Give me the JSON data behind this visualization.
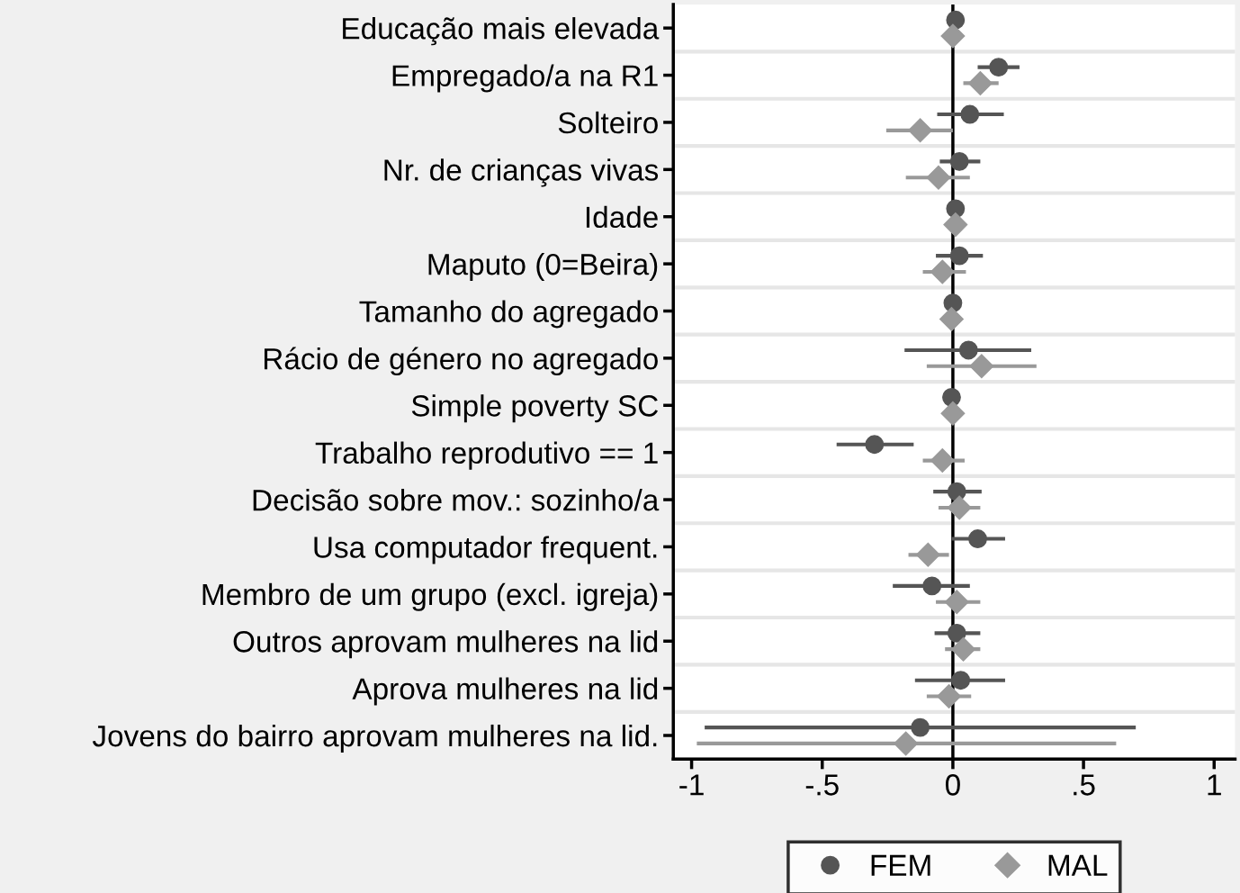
{
  "chart_data": {
    "type": "scatter",
    "orientation": "horizontal",
    "categories": [
      "Educação mais elevada",
      "Empregado/a na R1",
      "Solteiro",
      "Nr. de crianças vivas",
      "Idade",
      "Maputo (0=Beira)",
      "Tamanho do agregado",
      "Rácio de género no agregado",
      "Simple poverty SC",
      "Trabalho reprodutivo == 1",
      "Decisão sobre mov.: sozinho/a",
      "Usa computador frequent.",
      "Membro de um grupo (excl. igreja)",
      "Outros aprovam mulheres na lid",
      "Aprova mulheres na lid",
      "Jovens do bairro aprovam mulheres na lid."
    ],
    "series": [
      {
        "name": "FEM",
        "color": "#555555",
        "marker": "circle",
        "values": [
          0.01,
          0.175,
          0.065,
          0.025,
          0.01,
          0.025,
          0.0,
          0.06,
          -0.005,
          -0.3,
          0.015,
          0.095,
          -0.08,
          0.015,
          0.03,
          -0.125
        ],
        "errors": [
          null,
          [
            0.095,
            0.255
          ],
          [
            -0.06,
            0.195
          ],
          [
            -0.05,
            0.105
          ],
          null,
          [
            -0.065,
            0.115
          ],
          null,
          [
            -0.185,
            0.3
          ],
          null,
          [
            -0.445,
            -0.15
          ],
          [
            -0.075,
            0.11
          ],
          [
            -0.005,
            0.2
          ],
          [
            -0.23,
            0.065
          ],
          [
            -0.07,
            0.105
          ],
          [
            -0.145,
            0.2
          ],
          [
            -0.95,
            0.7
          ]
        ]
      },
      {
        "name": "MAL",
        "color": "#999999",
        "marker": "diamond",
        "values": [
          0.0,
          0.105,
          -0.125,
          -0.055,
          0.01,
          -0.04,
          -0.005,
          0.11,
          0.0,
          -0.04,
          0.025,
          -0.095,
          0.015,
          0.04,
          -0.015,
          -0.18
        ],
        "errors": [
          null,
          [
            0.04,
            0.175
          ],
          [
            -0.255,
            0.0
          ],
          [
            -0.18,
            0.065
          ],
          null,
          [
            -0.115,
            0.05
          ],
          null,
          [
            -0.1,
            0.32
          ],
          null,
          [
            -0.115,
            0.045
          ],
          [
            -0.055,
            0.105
          ],
          [
            -0.17,
            -0.015
          ],
          [
            -0.065,
            0.105
          ],
          [
            -0.03,
            0.105
          ],
          [
            -0.1,
            0.07
          ],
          [
            -0.98,
            0.625
          ]
        ]
      }
    ],
    "xlim": [
      -1.07,
      1.08
    ],
    "xticks": [
      {
        "value": -1,
        "label": "-1"
      },
      {
        "value": -0.5,
        "label": "-.5"
      },
      0,
      {
        "value": 0.5,
        "label": ".5"
      },
      1
    ],
    "ref_lines": [
      {
        "axis": "x",
        "value": 0,
        "color": "#000000"
      }
    ],
    "grid": "y",
    "legend": "bottom"
  }
}
